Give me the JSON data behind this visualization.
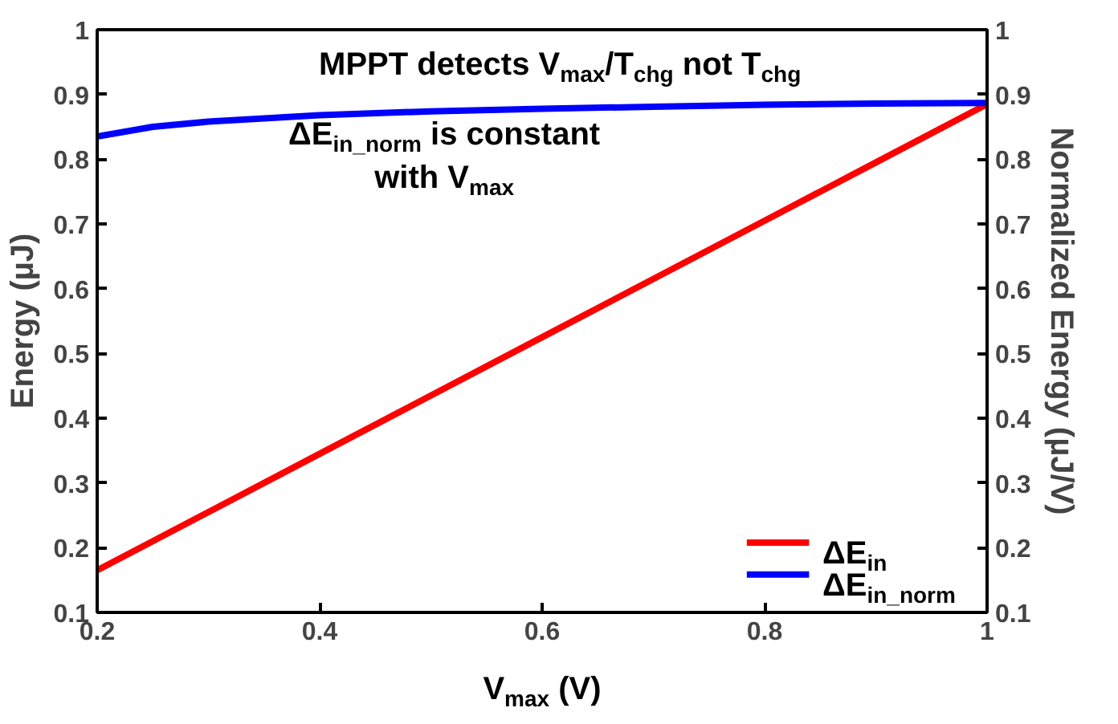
{
  "chart_data": {
    "type": "line",
    "xlabel": "V$_{max}$ (V)",
    "ylabel": "Energy (µJ)",
    "y2label": "Normalized Energy (µJ/V)",
    "x": [
      0.2,
      0.25,
      0.3,
      0.4,
      0.5,
      0.6,
      0.7,
      0.8,
      0.9,
      1.0
    ],
    "series": [
      {
        "name": "ΔE$_{in}$",
        "color": "#ff0000",
        "values": [
          0.165,
          0.21,
          0.255,
          0.345,
          0.435,
          0.525,
          0.615,
          0.705,
          0.795,
          0.885
        ]
      },
      {
        "name": "ΔE$_{in_norm}$",
        "color": "#0000ff",
        "values": [
          0.835,
          0.85,
          0.858,
          0.868,
          0.874,
          0.878,
          0.881,
          0.884,
          0.886,
          0.887
        ]
      }
    ],
    "xlim": [
      0.2,
      1.0
    ],
    "xticks": [
      0.2,
      0.4,
      0.6,
      0.8,
      1
    ],
    "ylim": [
      0.1,
      1.0
    ],
    "yticks": [
      0.1,
      0.2,
      0.3,
      0.4,
      0.5,
      0.6,
      0.7,
      0.8,
      0.9,
      1
    ],
    "y2lim": [
      0.1,
      1.0
    ],
    "y2ticks": [
      0.1,
      0.2,
      0.3,
      0.4,
      0.5,
      0.6,
      0.7,
      0.8,
      0.9,
      1
    ],
    "annotations": [
      "MPPT detects V$_{max}$/T$_{chg}$ not T$_{chg}$",
      "ΔE$_{in_norm}$ is constant\nwith V$_{max}$"
    ],
    "legend": "bottom right",
    "grid": false,
    "marker": "none",
    "line_style": "solid"
  }
}
